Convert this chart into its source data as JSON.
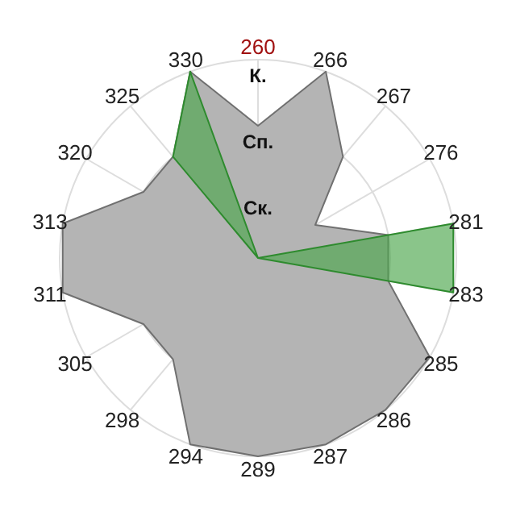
{
  "chart_data": {
    "type": "radar",
    "categories": [
      "260",
      "266",
      "267",
      "276",
      "281",
      "283",
      "285",
      "286",
      "287",
      "289",
      "294",
      "298",
      "305",
      "311",
      "313",
      "320",
      "325",
      "330"
    ],
    "series": [
      {
        "color": "#b4b4b4",
        "values": [
          2,
          3,
          2,
          1,
          2,
          2,
          3,
          3,
          3,
          3,
          3,
          2,
          2,
          3,
          3,
          2,
          2,
          3
        ]
      },
      {
        "color": "#4ca64c",
        "values": [
          0,
          0,
          0,
          0,
          3,
          3,
          0,
          0,
          0,
          0,
          0,
          0,
          0,
          0,
          0,
          0,
          2,
          3
        ]
      }
    ],
    "ylim": [
      0,
      3
    ],
    "yticks": [
      {
        "value": 1,
        "label": "Ск."
      },
      {
        "value": 2,
        "label": "Сп."
      },
      {
        "value": 3,
        "label": "К."
      }
    ],
    "grid": true,
    "legend": false
  }
}
